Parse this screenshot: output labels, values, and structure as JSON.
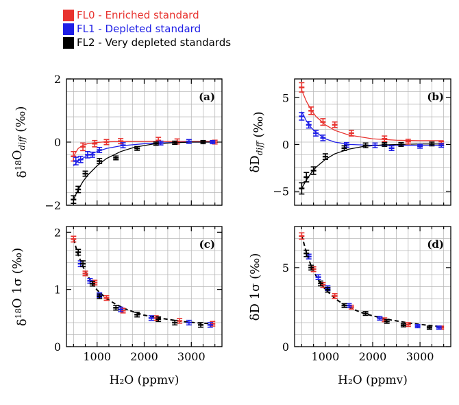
{
  "legend": {
    "entries": [
      {
        "label": "FL0 - Enriched standard",
        "color": "#e8332f"
      },
      {
        "label": "FL1 - Depleted standard",
        "color": "#1f1fe6"
      },
      {
        "label": "FL2 - Very depleted standards",
        "color": "#000000"
      }
    ]
  },
  "colors": {
    "FL0": "#e8332f",
    "FL1": "#1f1fe6",
    "FL2": "#000000"
  },
  "chart_data": [
    {
      "type": "scatter",
      "panel_label": "(a)",
      "ylabel": {
        "main": "δ",
        "sup": "18",
        "mid": "O",
        "sub": "diff",
        "unit": " (‰)"
      },
      "xlabel": "",
      "xlim": [
        350,
        3650
      ],
      "ylim": [
        -2,
        2
      ],
      "xticks": [
        1000,
        2000,
        3000
      ],
      "xticklabels": [],
      "yticks": [
        -2,
        0,
        2
      ],
      "yticklabels": [
        "−2",
        "0",
        "2"
      ],
      "grid": true,
      "series": [
        {
          "key": "FL0",
          "x": [
            500,
            700,
            950,
            1200,
            1500,
            2300,
            2700,
            3500
          ],
          "y": [
            -0.45,
            -0.15,
            -0.05,
            0.0,
            0.03,
            0.05,
            0.02,
            0.0
          ],
          "err": [
            0.15,
            0.12,
            0.1,
            0.08,
            0.08,
            0.1,
            0.08,
            0.06
          ],
          "fit": {
            "x": [
              500,
              600,
              700,
              800,
              1000,
              1200,
              1500,
              2000,
              2500,
              3000,
              3500
            ],
            "y": [
              -0.45,
              -0.2,
              -0.1,
              -0.05,
              -0.01,
              0.01,
              0.02,
              0.02,
              0.02,
              0.02,
              0.02
            ]
          }
        },
        {
          "key": "FL1",
          "x": [
            550,
            650,
            800,
            900,
            1050,
            1550,
            2350,
            2950,
            3450
          ],
          "y": [
            -0.6,
            -0.55,
            -0.4,
            -0.4,
            -0.25,
            -0.1,
            -0.03,
            0.02,
            0.0
          ],
          "err": [
            0.12,
            0.1,
            0.1,
            0.08,
            0.08,
            0.08,
            0.06,
            0.06,
            0.05
          ],
          "fit": {
            "x": [
              500,
              600,
              800,
              1000,
              1200,
              1500,
              2000,
              2500,
              3000,
              3500
            ],
            "y": [
              -0.75,
              -0.6,
              -0.42,
              -0.3,
              -0.2,
              -0.12,
              -0.05,
              -0.02,
              0.0,
              0.0
            ]
          }
        },
        {
          "key": "FL2",
          "x": [
            500,
            600,
            750,
            1050,
            1400,
            1850,
            2250,
            2650,
            3250
          ],
          "y": [
            -1.82,
            -1.5,
            -1.0,
            -0.6,
            -0.5,
            -0.2,
            -0.05,
            -0.02,
            0.0
          ],
          "err": [
            0.12,
            0.1,
            0.08,
            0.08,
            0.06,
            0.06,
            0.05,
            0.05,
            0.05
          ],
          "fit": {
            "x": [
              500,
              600,
              700,
              800,
              1000,
              1200,
              1500,
              1800,
              2200,
              2600,
              3000,
              3500
            ],
            "y": [
              -1.82,
              -1.5,
              -1.25,
              -1.05,
              -0.75,
              -0.52,
              -0.3,
              -0.16,
              -0.06,
              -0.02,
              0.0,
              0.0
            ]
          }
        }
      ]
    },
    {
      "type": "scatter",
      "panel_label": "(b)",
      "ylabel": {
        "main": "δD",
        "sup": "",
        "mid": "",
        "sub": "diff",
        "unit": " (‰)"
      },
      "xlabel": "",
      "xlim": [
        350,
        3650
      ],
      "ylim": [
        -6.5,
        7
      ],
      "xticks": [
        1000,
        2000,
        3000
      ],
      "xticklabels": [],
      "yticks": [
        -5,
        0,
        5
      ],
      "yticklabels": [
        "−5",
        "0",
        "5"
      ],
      "grid": true,
      "series": [
        {
          "key": "FL0",
          "x": [
            500,
            700,
            950,
            1200,
            1550,
            2250,
            2750,
            3450
          ],
          "y": [
            6.1,
            3.6,
            2.4,
            2.1,
            1.2,
            0.6,
            0.3,
            0.1
          ],
          "err": [
            0.5,
            0.4,
            0.35,
            0.3,
            0.3,
            0.3,
            0.25,
            0.2
          ],
          "fit": {
            "x": [
              500,
              600,
              700,
              800,
              1000,
              1200,
              1500,
              2000,
              2500,
              3000,
              3500
            ],
            "y": [
              5.8,
              4.6,
              3.7,
              3.0,
              2.1,
              1.5,
              1.0,
              0.6,
              0.45,
              0.4,
              0.4
            ]
          }
        },
        {
          "key": "FL1",
          "x": [
            500,
            650,
            800,
            950,
            1450,
            2050,
            2400,
            3000,
            3450
          ],
          "y": [
            3.0,
            2.1,
            1.2,
            0.7,
            -0.05,
            -0.1,
            -0.4,
            -0.2,
            -0.1
          ],
          "err": [
            0.4,
            0.35,
            0.3,
            0.3,
            0.25,
            0.25,
            0.25,
            0.2,
            0.2
          ],
          "fit": {
            "x": [
              500,
              600,
              700,
              800,
              1000,
              1200,
              1500,
              2000,
              2500,
              3000,
              3500
            ],
            "y": [
              3.5,
              2.5,
              1.8,
              1.3,
              0.6,
              0.25,
              0.0,
              -0.1,
              -0.1,
              -0.1,
              -0.1
            ]
          }
        },
        {
          "key": "FL2",
          "x": [
            500,
            600,
            750,
            1000,
            1400,
            1850,
            2250,
            2600,
            3250
          ],
          "y": [
            -4.7,
            -3.5,
            -2.8,
            -1.3,
            -0.4,
            -0.1,
            0.0,
            0.0,
            0.05
          ],
          "err": [
            0.6,
            0.5,
            0.4,
            0.3,
            0.25,
            0.25,
            0.2,
            0.2,
            0.2
          ],
          "fit": {
            "x": [
              500,
              600,
              700,
              800,
              1000,
              1200,
              1500,
              1800,
              2200,
              2600,
              3000,
              3500
            ],
            "y": [
              -4.7,
              -3.8,
              -3.05,
              -2.45,
              -1.6,
              -1.0,
              -0.5,
              -0.22,
              -0.05,
              0.0,
              0.05,
              0.05
            ]
          }
        }
      ]
    },
    {
      "type": "scatter",
      "panel_label": "(c)",
      "ylabel": {
        "main": "δ",
        "sup": "18",
        "mid": "O 1σ",
        "sub": "",
        "unit": " (‰)"
      },
      "xlabel": "H₂O (ppmv)",
      "xlim": [
        350,
        3650
      ],
      "ylim": [
        0,
        2.1
      ],
      "xticks": [
        1000,
        2000,
        3000
      ],
      "xticklabels": [
        "1000",
        "2000",
        "3000"
      ],
      "yticks": [
        0,
        1,
        2
      ],
      "yticklabels": [
        "0",
        "1",
        "2"
      ],
      "grid": true,
      "fit": {
        "x": [
          500,
          600,
          700,
          800,
          900,
          1000,
          1200,
          1400,
          1600,
          1800,
          2000,
          2400,
          2800,
          3200,
          3500
        ],
        "y": [
          1.88,
          1.6,
          1.4,
          1.24,
          1.1,
          0.99,
          0.84,
          0.74,
          0.66,
          0.6,
          0.55,
          0.49,
          0.44,
          0.41,
          0.4
        ]
      },
      "series": [
        {
          "key": "FL0",
          "x": [
            500,
            750,
            950,
            1200,
            1550,
            2250,
            2750,
            3450
          ],
          "y": [
            1.88,
            1.28,
            1.12,
            0.85,
            0.63,
            0.5,
            0.45,
            0.4
          ],
          "err": [
            0.05,
            0.04,
            0.04,
            0.04,
            0.04,
            0.04,
            0.04,
            0.04
          ]
        },
        {
          "key": "FL1",
          "x": [
            650,
            850,
            1050,
            1500,
            2150,
            2950,
            3400
          ],
          "y": [
            1.45,
            1.15,
            0.9,
            0.65,
            0.5,
            0.42,
            0.38
          ],
          "err": [
            0.05,
            0.04,
            0.04,
            0.04,
            0.04,
            0.04,
            0.04
          ]
        },
        {
          "key": "FL2",
          "x": [
            600,
            700,
            900,
            1050,
            1400,
            1850,
            2300,
            2650,
            3200
          ],
          "y": [
            1.65,
            1.45,
            1.1,
            0.88,
            0.68,
            0.56,
            0.48,
            0.42,
            0.38
          ],
          "err": [
            0.05,
            0.05,
            0.04,
            0.04,
            0.04,
            0.04,
            0.04,
            0.04,
            0.04
          ]
        }
      ]
    },
    {
      "type": "scatter",
      "panel_label": "(d)",
      "ylabel": {
        "main": "δD 1σ",
        "sup": "",
        "mid": "",
        "sub": "",
        "unit": " (‰)"
      },
      "xlabel": "H₂O (ppmv)",
      "xlim": [
        350,
        3650
      ],
      "ylim": [
        0,
        7.6
      ],
      "xticks": [
        1000,
        2000,
        3000
      ],
      "xticklabels": [
        "1000",
        "2000",
        "3000"
      ],
      "yticks": [
        0,
        5
      ],
      "yticklabels": [
        "0",
        "5"
      ],
      "grid": true,
      "fit": {
        "x": [
          500,
          600,
          700,
          800,
          900,
          1000,
          1200,
          1400,
          1600,
          1800,
          2000,
          2400,
          2800,
          3200,
          3500
        ],
        "y": [
          7.05,
          5.95,
          5.1,
          4.5,
          4.0,
          3.62,
          3.05,
          2.65,
          2.35,
          2.12,
          1.95,
          1.68,
          1.48,
          1.34,
          1.25
        ]
      },
      "series": [
        {
          "key": "FL0",
          "x": [
            500,
            750,
            950,
            1200,
            1550,
            2250,
            2750,
            3450
          ],
          "y": [
            7.0,
            4.9,
            3.9,
            3.2,
            2.5,
            1.7,
            1.4,
            1.2
          ],
          "err": [
            0.2,
            0.15,
            0.15,
            0.15,
            0.12,
            0.12,
            0.12,
            0.1
          ]
        },
        {
          "key": "FL1",
          "x": [
            650,
            850,
            1050,
            1500,
            2150,
            2950,
            3400
          ],
          "y": [
            5.7,
            4.4,
            3.7,
            2.6,
            1.8,
            1.3,
            1.2
          ],
          "err": [
            0.15,
            0.15,
            0.15,
            0.12,
            0.12,
            0.1,
            0.1
          ]
        },
        {
          "key": "FL2",
          "x": [
            600,
            700,
            900,
            1050,
            1400,
            1850,
            2300,
            2650,
            3200
          ],
          "y": [
            5.9,
            5.0,
            4.0,
            3.6,
            2.6,
            2.1,
            1.6,
            1.35,
            1.2
          ],
          "err": [
            0.2,
            0.15,
            0.15,
            0.15,
            0.12,
            0.12,
            0.12,
            0.1,
            0.1
          ]
        }
      ]
    }
  ]
}
